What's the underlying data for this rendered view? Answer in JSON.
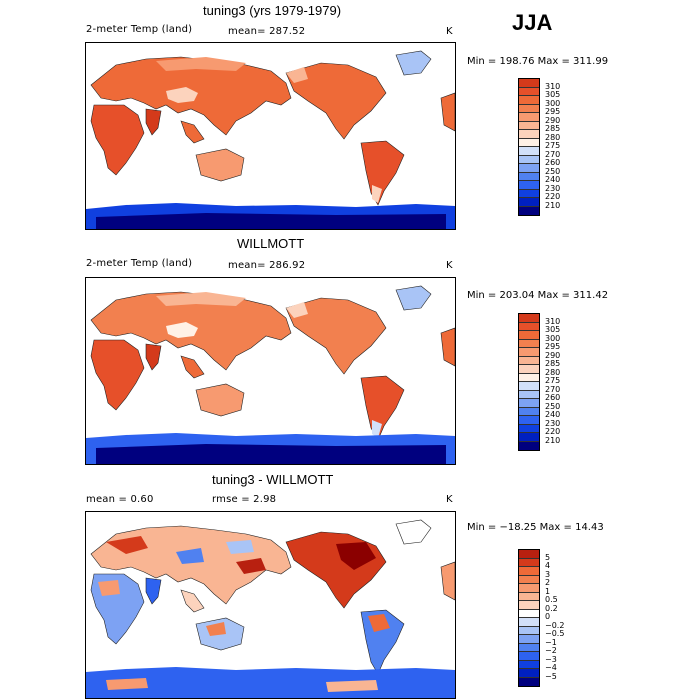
{
  "season": "JJA",
  "colors": {
    "temp_scale": [
      "#00007f",
      "#0020c0",
      "#1040e0",
      "#2e62f0",
      "#5081f0",
      "#7da2f3",
      "#a9c4f6",
      "#d2e0f9",
      "#fff1e6",
      "#fcd3bd",
      "#f9b593",
      "#f79a70",
      "#f2804f",
      "#ee6a38",
      "#e6502a",
      "#d43a1b",
      "#b82010",
      "#8b0000"
    ],
    "diff_scale": [
      "#00007f",
      "#0020c0",
      "#1040e0",
      "#2e62f0",
      "#5081f0",
      "#7da2f3",
      "#a9c4f6",
      "#d2e0f9",
      "#ffffff",
      "#fcd3bd",
      "#f9b593",
      "#f79a70",
      "#f2804f",
      "#ee6a38",
      "#d43a1b",
      "#b82010",
      "#8b0000"
    ]
  },
  "panels": [
    {
      "title": "tuning3 (yrs 1979-1979)",
      "variable": "2-meter Temp (land)",
      "mean_text": "mean= 287.52",
      "units": "K",
      "minmax": "Min = 198.76 Max = 311.99",
      "colorbar_labels": [
        "310",
        "305",
        "300",
        "295",
        "290",
        "285",
        "280",
        "275",
        "270",
        "260",
        "250",
        "240",
        "230",
        "220",
        "210"
      ]
    },
    {
      "title": "WILLMOTT",
      "variable": "2-meter Temp (land)",
      "mean_text": "mean= 286.92",
      "units": "K",
      "minmax": "Min = 203.04 Max = 311.42",
      "colorbar_labels": [
        "310",
        "305",
        "300",
        "295",
        "290",
        "285",
        "280",
        "275",
        "270",
        "260",
        "250",
        "240",
        "230",
        "220",
        "210"
      ]
    },
    {
      "title": "tuning3 - WILLMOTT",
      "mean_text": "mean =    0.60",
      "rmse_text": "rmse =    2.98",
      "units": "K",
      "minmax": "Min = −18.25 Max =  14.43",
      "colorbar_labels": [
        "5",
        "4",
        "3",
        "2",
        "1",
        "0.5",
        "0.2",
        "0",
        "−0.2",
        "−0.5",
        "−1",
        "−2",
        "−3",
        "−4",
        "−5"
      ]
    }
  ]
}
